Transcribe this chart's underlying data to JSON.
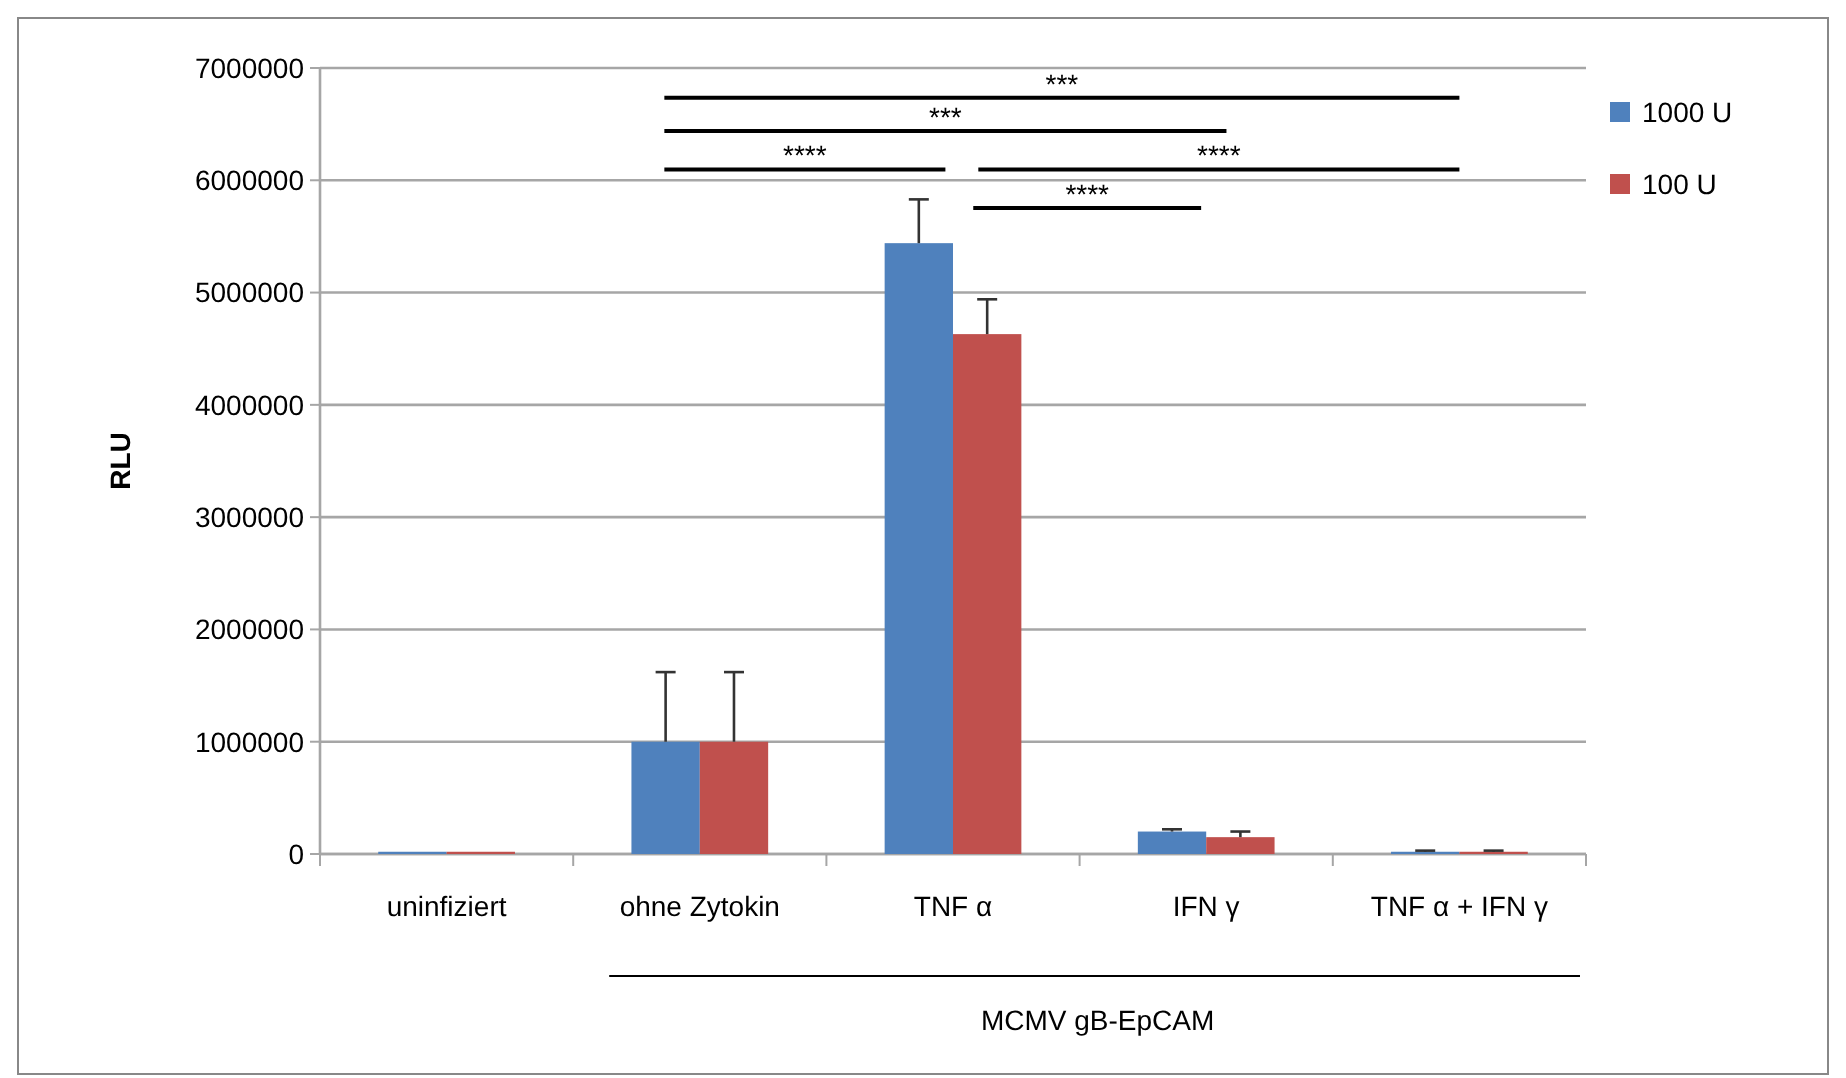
{
  "chart_data": {
    "type": "bar",
    "ylabel": "RLU",
    "categories": [
      "uninfiziert",
      "ohne Zytokin",
      "TNF α",
      "IFN γ",
      "TNF α + IFN γ"
    ],
    "series": [
      {
        "name": "1000 U",
        "color": "#4f81bd",
        "values": [
          20000,
          1000000,
          5440000,
          200000,
          20000
        ],
        "errors": [
          null,
          [
            1000000,
            1620000
          ],
          [
            5440000,
            5830000
          ],
          [
            200000,
            220000
          ],
          [
            20000,
            30000
          ]
        ]
      },
      {
        "name": "100 U",
        "color": "#c0504d",
        "values": [
          20000,
          1000000,
          4630000,
          150000,
          20000
        ],
        "errors": [
          null,
          [
            1000000,
            1620000
          ],
          [
            4630000,
            4940000
          ],
          [
            150000,
            200000
          ],
          [
            20000,
            30000
          ]
        ]
      }
    ],
    "ylim": [
      0,
      7000000
    ],
    "yticks": [
      0,
      1000000,
      2000000,
      3000000,
      4000000,
      5000000,
      6000000,
      7000000
    ],
    "grid": "y",
    "legend": "right",
    "annotations": [
      "***",
      "***",
      "****",
      "****",
      "****",
      "MCMV gB-EpCAM"
    ]
  }
}
